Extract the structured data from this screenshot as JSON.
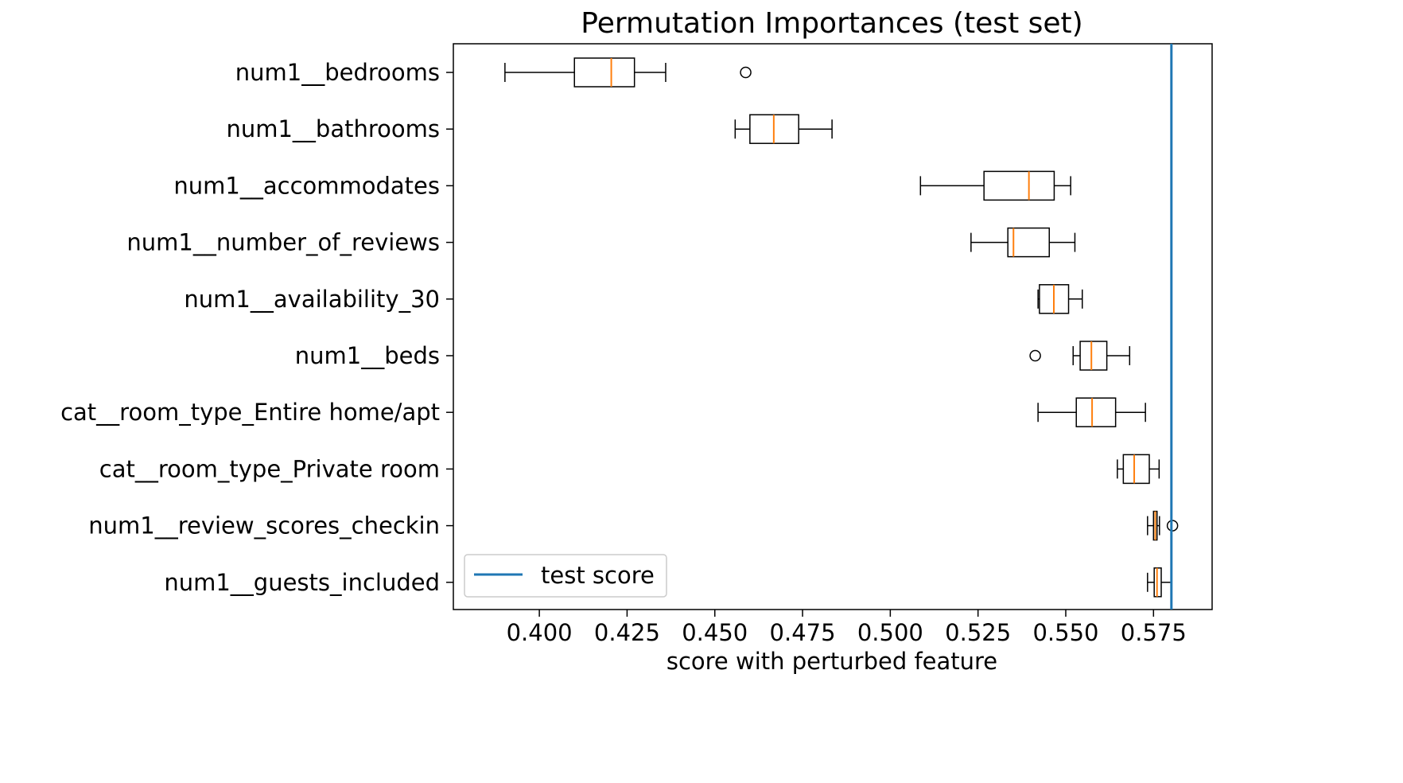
{
  "chart_data": {
    "type": "box",
    "orientation": "horizontal",
    "title": "Permutation Importances (test set)",
    "xlabel": "score with perturbed feature",
    "ylabel": "",
    "xlim": [
      0.3755,
      0.5917
    ],
    "xticks": [
      0.4,
      0.425,
      0.45,
      0.475,
      0.5,
      0.525,
      0.55,
      0.575
    ],
    "xtick_labels": [
      "0.400",
      "0.425",
      "0.450",
      "0.475",
      "0.500",
      "0.525",
      "0.550",
      "0.575"
    ],
    "grid": false,
    "colors": {
      "box": "#000000",
      "median": "#ff7f0e",
      "reference_line": "#1f77b4"
    },
    "reference_line": {
      "label": "test score",
      "x": 0.5801
    },
    "legend": {
      "placement": "lower-left",
      "entries": [
        "test score"
      ]
    },
    "categories": [
      "num1__bedrooms",
      "num1__bathrooms",
      "num1__accommodates",
      "num1__number_of_reviews",
      "num1__availability_30",
      "num1__beds",
      "cat__room_type_Entire home/apt",
      "cat__room_type_Private room",
      "num1__review_scores_checkin",
      "num1__guests_included"
    ],
    "boxes": [
      {
        "feature": "num1__bedrooms",
        "whisker_low": 0.3902,
        "q1": 0.41,
        "median": 0.4205,
        "q3": 0.4271,
        "whisker_high": 0.436,
        "outliers": [
          0.4588
        ]
      },
      {
        "feature": "num1__bathrooms",
        "whisker_low": 0.4558,
        "q1": 0.46,
        "median": 0.4668,
        "q3": 0.4739,
        "whisker_high": 0.4834,
        "outliers": []
      },
      {
        "feature": "num1__accommodates",
        "whisker_low": 0.5086,
        "q1": 0.5267,
        "median": 0.5395,
        "q3": 0.5467,
        "whisker_high": 0.5514,
        "outliers": []
      },
      {
        "feature": "num1__number_of_reviews",
        "whisker_low": 0.523,
        "q1": 0.5335,
        "median": 0.5351,
        "q3": 0.5453,
        "whisker_high": 0.5526,
        "outliers": []
      },
      {
        "feature": "num1__availability_30",
        "whisker_low": 0.5421,
        "q1": 0.5425,
        "median": 0.5466,
        "q3": 0.5508,
        "whisker_high": 0.5547,
        "outliers": []
      },
      {
        "feature": "num1__beds",
        "whisker_low": 0.5521,
        "q1": 0.5541,
        "median": 0.5573,
        "q3": 0.5617,
        "whisker_high": 0.5682,
        "outliers": [
          0.5413
        ]
      },
      {
        "feature": "cat__room_type_Entire home/apt",
        "whisker_low": 0.5421,
        "q1": 0.553,
        "median": 0.5575,
        "q3": 0.5642,
        "whisker_high": 0.5727,
        "outliers": []
      },
      {
        "feature": "cat__room_type_Private room",
        "whisker_low": 0.5647,
        "q1": 0.5664,
        "median": 0.5695,
        "q3": 0.5738,
        "whisker_high": 0.5766,
        "outliers": []
      },
      {
        "feature": "num1__review_scores_checkin",
        "whisker_low": 0.5733,
        "q1": 0.575,
        "median": 0.5755,
        "q3": 0.576,
        "whisker_high": 0.5767,
        "outliers": [
          0.5804
        ]
      },
      {
        "feature": "num1__guests_included",
        "whisker_low": 0.5733,
        "q1": 0.5752,
        "median": 0.576,
        "q3": 0.5772,
        "whisker_high": 0.5801,
        "outliers": []
      }
    ]
  }
}
